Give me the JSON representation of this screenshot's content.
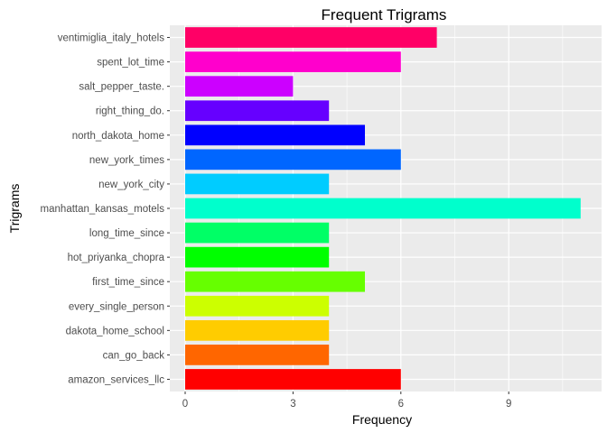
{
  "chart_data": {
    "type": "bar",
    "orientation": "horizontal",
    "title": "Frequent Trigrams",
    "xlabel": "Frequency",
    "ylabel": "Trigrams",
    "xlim": [
      0,
      11.5
    ],
    "x_ticks": [
      0,
      3,
      6,
      9
    ],
    "x_tick_labels": [
      "0",
      "3",
      "6",
      "9"
    ],
    "grid": true,
    "legend": "none",
    "categories": [
      "ventimiglia_italy_hotels",
      "spent_lot_time",
      "salt_pepper_taste.",
      "right_thing_do.",
      "north_dakota_home",
      "new_york_times",
      "new_york_city",
      "manhattan_kansas_motels",
      "long_time_since",
      "hot_priyanka_chopra",
      "first_time_since",
      "every_single_person",
      "dakota_home_school",
      "can_go_back",
      "amazon_services_llc"
    ],
    "values": [
      7,
      6,
      3,
      4,
      5,
      6,
      4,
      11,
      4,
      4,
      5,
      4,
      4,
      4,
      6
    ],
    "colors": [
      "#FF0066",
      "#FF00CC",
      "#CC00FF",
      "#6600FF",
      "#0000FF",
      "#0066FF",
      "#00CCFF",
      "#00FFCC",
      "#00FF66",
      "#00FF00",
      "#66FF00",
      "#CCFF00",
      "#FFCC00",
      "#FF6600",
      "#FF0000"
    ],
    "panel_background": "#EBEBEB",
    "grid_color": "#FFFFFF"
  }
}
